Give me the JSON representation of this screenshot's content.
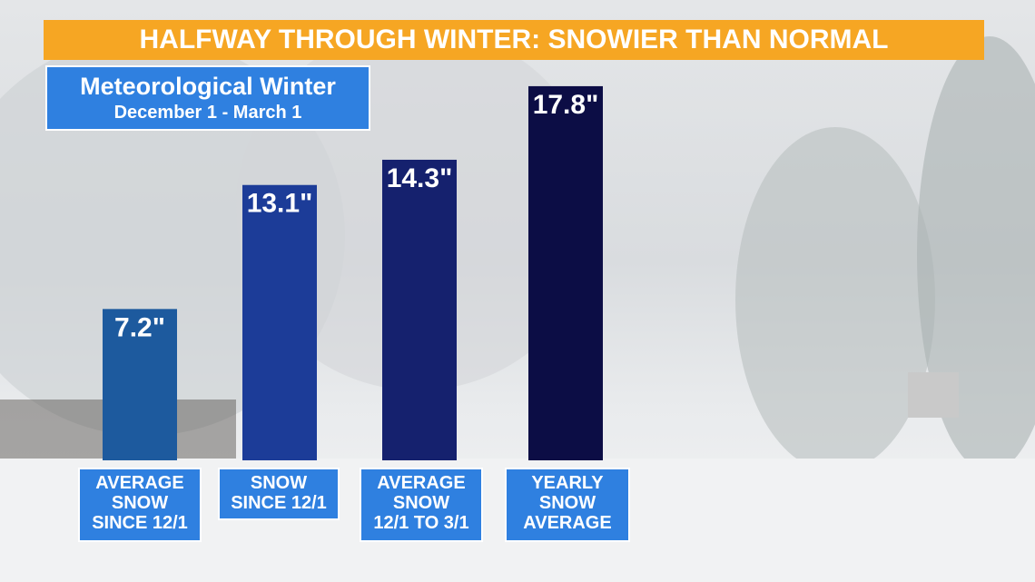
{
  "chart_data": {
    "type": "bar",
    "title": "HALFWAY THROUGH WINTER: SNOWIER THAN NORMAL",
    "subtitle": "Meteorological Winter",
    "subtitle_detail": "December 1 - March 1",
    "categories": [
      "AVERAGE\nSNOW\nSINCE 12/1",
      "SNOW\nSINCE 12/1",
      "AVERAGE\nSNOW\n12/1 TO 3/1",
      "YEARLY\nSNOW\nAVERAGE"
    ],
    "values": [
      7.2,
      13.1,
      14.3,
      17.8
    ],
    "value_labels": [
      "7.2\"",
      "13.1\"",
      "14.3\"",
      "17.8\""
    ],
    "colors": [
      "#1d5a9e",
      "#1c3c98",
      "#15216e",
      "#0c0d45"
    ]
  }
}
